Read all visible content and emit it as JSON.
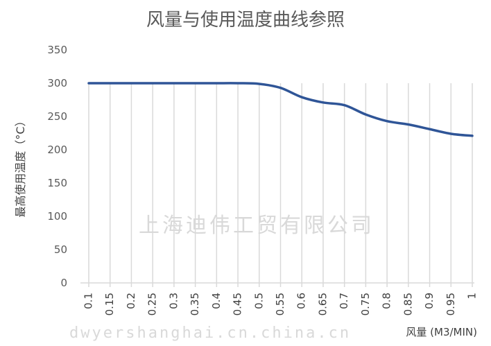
{
  "chart_data": {
    "type": "line",
    "title": "风量与使用温度曲线参照",
    "xlabel": "风量 (M3/MIN)",
    "ylabel": "最高使用温度（°C）",
    "categories": [
      "0.1",
      "0.15",
      "0.2",
      "0.25",
      "0.3",
      "0.35",
      "0.4",
      "0.45",
      "0.5",
      "0.55",
      "0.6",
      "0.65",
      "0.7",
      "0.75",
      "0.8",
      "0.85",
      "0.9",
      "0.95",
      "1"
    ],
    "values": [
      300,
      300,
      300,
      300,
      300,
      300,
      300,
      300,
      299,
      293,
      279,
      271,
      267,
      253,
      243,
      238,
      231,
      224,
      221
    ],
    "ylim": [
      0,
      350
    ],
    "yticks": [
      "0",
      "50",
      "100",
      "150",
      "200",
      "250",
      "300",
      "350"
    ],
    "grid": "vertical",
    "smooth": true,
    "line_color": "#2F5597",
    "grid_color": "#D9D9D9"
  },
  "watermark": {
    "line1": "上海迪伟工贸有限公司",
    "line2": "dwyershanghai.cn.china.cn"
  }
}
